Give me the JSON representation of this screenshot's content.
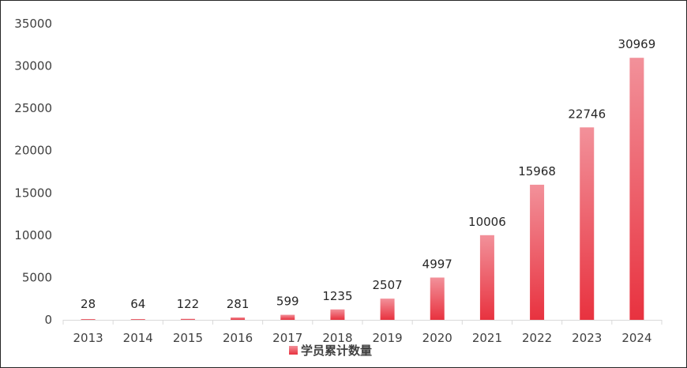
{
  "chart_data": {
    "type": "bar",
    "title": "",
    "xlabel": "",
    "ylabel": "",
    "categories": [
      "2013",
      "2014",
      "2015",
      "2016",
      "2017",
      "2018",
      "2019",
      "2020",
      "2021",
      "2022",
      "2023",
      "2024"
    ],
    "series": [
      {
        "name": "学员累计数量",
        "values": [
          28,
          64,
          122,
          281,
          599,
          1235,
          2507,
          4997,
          10006,
          15968,
          22746,
          30969
        ],
        "color_top": "#F2919A",
        "color_bottom": "#E8323F"
      }
    ],
    "ylim": [
      0,
      35000
    ],
    "yticks": [
      "0",
      "5000",
      "10000",
      "15000",
      "20000",
      "25000",
      "30000",
      "35000"
    ],
    "grid": false,
    "data_labels": true,
    "legend_position": "bottom"
  }
}
